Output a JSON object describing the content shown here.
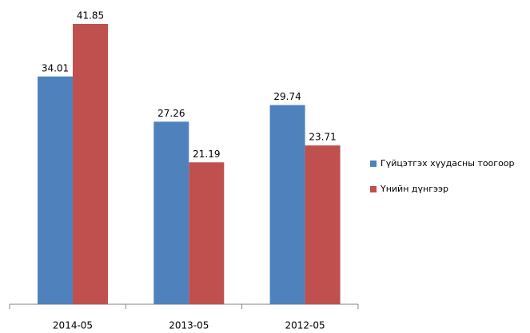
{
  "chart_data": {
    "type": "bar",
    "categories": [
      "2014-05",
      "2013-05",
      "2012-05"
    ],
    "series": [
      {
        "name": "Гүйцэтгэх хүудасны тоогоор",
        "color": "#4f81bd",
        "values": [
          34.01,
          27.26,
          29.74
        ]
      },
      {
        "name": "Үнийн дүнгээр",
        "color": "#c0504d",
        "values": [
          41.85,
          21.19,
          23.71
        ]
      }
    ],
    "legend": "right"
  }
}
